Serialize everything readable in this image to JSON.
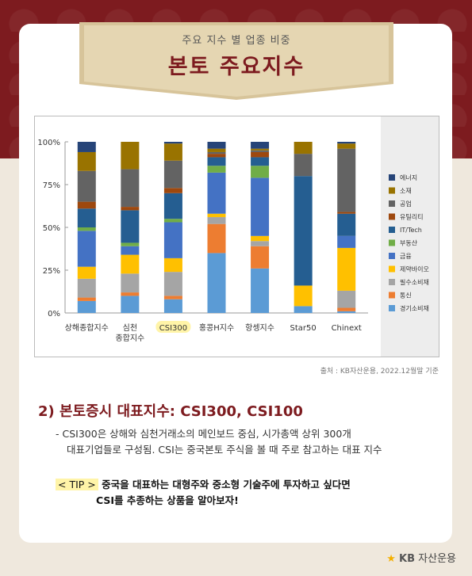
{
  "banner": {
    "subtitle": "주요 지수 별 업종 비중",
    "title": "본토 주요지수"
  },
  "chart_data": {
    "type": "bar",
    "stacked": true,
    "categories": [
      "상해종합지수",
      "심천\n종합지수",
      "CSI300",
      "홍콩H지수",
      "항셍지수",
      "Star50",
      "Chinext"
    ],
    "highlighted_category": "CSI300",
    "ylim": [
      0,
      100
    ],
    "yticks": [
      "0%",
      "25%",
      "50%",
      "75%",
      "100%"
    ],
    "legend_position": "right",
    "series": [
      {
        "name": "경기소비재",
        "color": "#5b9bd5",
        "values": [
          7,
          10,
          8,
          35,
          26,
          4,
          1
        ]
      },
      {
        "name": "통신",
        "color": "#ed7d31",
        "values": [
          2,
          2,
          2,
          17,
          13,
          0,
          2
        ]
      },
      {
        "name": "필수소비재",
        "color": "#a5a5a5",
        "values": [
          11,
          11,
          14,
          4,
          3,
          0,
          10
        ]
      },
      {
        "name": "제약바이오",
        "color": "#ffc000",
        "values": [
          7,
          11,
          8,
          2,
          3,
          12,
          25
        ]
      },
      {
        "name": "금융",
        "color": "#4472c4",
        "values": [
          21,
          5,
          21,
          24,
          34,
          0,
          7
        ]
      },
      {
        "name": "부동산",
        "color": "#70ad47",
        "values": [
          2,
          2,
          2,
          4,
          7,
          0,
          0
        ]
      },
      {
        "name": "IT/Tech",
        "color": "#255e91",
        "values": [
          11,
          19,
          15,
          5,
          5,
          64,
          13
        ]
      },
      {
        "name": "유틸리티",
        "color": "#9e480e",
        "values": [
          4,
          2,
          3,
          2,
          3,
          0,
          1
        ]
      },
      {
        "name": "공업",
        "color": "#636363",
        "values": [
          18,
          22,
          16,
          1,
          1,
          13,
          37
        ]
      },
      {
        "name": "소재",
        "color": "#997300",
        "values": [
          11,
          16,
          10,
          2,
          1,
          7,
          3
        ]
      },
      {
        "name": "에너지",
        "color": "#264478",
        "values": [
          6,
          0,
          1,
          4,
          4,
          0,
          1
        ]
      }
    ]
  },
  "source": "출처 : KB자산운용, 2022.12월말 기준",
  "section": {
    "heading": "2) 본토증시 대표지수: CSI300, CSI100",
    "bullet_line1": "- CSI300은 상해와 심천거래소의 메인보드 중심, 시가총액 상위 300개",
    "bullet_line2": "대표기업들로 구성됨. CSI는 중국본토 주식을 볼 때 주로 참고하는 대표 지수",
    "tip_badge": "< TIP >",
    "tip_line1": "중국을 대표하는 대형주와 중소형 기술주에 투자하고 싶다면",
    "tip_line2": "CSI를 추종하는 상품을 알아보자!"
  },
  "logo": {
    "mark": "★",
    "kb": "KB",
    "name": "자산운용"
  }
}
